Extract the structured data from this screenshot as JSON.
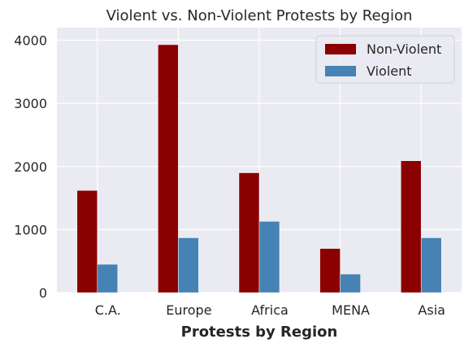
{
  "chart_data": {
    "type": "bar",
    "title": "Violent vs. Non-Violent Protests by Region",
    "xlabel": "Protests by Region",
    "ylabel": "",
    "categories": [
      "C.A.",
      "Europe",
      "Africa",
      "MENA",
      "Asia"
    ],
    "series": [
      {
        "name": "Non-Violent",
        "values": [
          1620,
          3930,
          1900,
          700,
          2090
        ],
        "color": "#8b0000"
      },
      {
        "name": "Violent",
        "values": [
          450,
          870,
          1130,
          295,
          870
        ],
        "color": "#4682b4"
      }
    ],
    "ylim": [
      0,
      4200
    ],
    "yticks": [
      0,
      1000,
      2000,
      3000,
      4000
    ],
    "grid": true,
    "legend": "top-right",
    "background_color": "#eaeaf2",
    "grid_color": "#ffffff"
  }
}
